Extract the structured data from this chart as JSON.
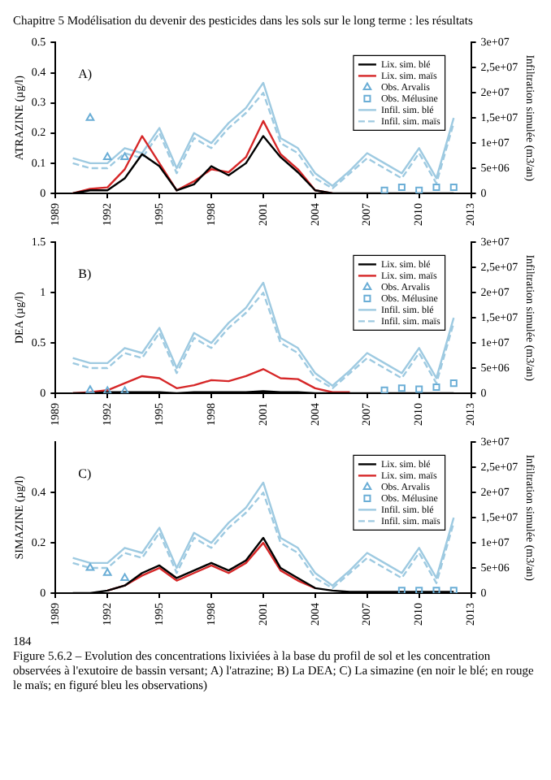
{
  "chart_data": [
    {
      "type": "other",
      "annotations": [
        "Chapitre 5 Modélisation du devenir des pesticides dans les sols sur le long terme : les résultats"
      ]
    },
    {
      "type": "line",
      "ylabel": "ATRAZINE (µg/l)",
      "y2label": "Infiltration simulée (m3/an)",
      "annotations": [
        "A)"
      ],
      "xlim": [
        1989,
        2013
      ],
      "xticks": [
        1989,
        1992,
        1995,
        1998,
        2001,
        2004,
        2007,
        2010,
        2013
      ],
      "ylim": [
        0,
        0.5
      ],
      "yticks": [
        0,
        0.1,
        0.2,
        0.3,
        0.4,
        0.5
      ],
      "y2lim": [
        0,
        30000000
      ],
      "y2ticks": [
        {
          "value": 0,
          "label": "0"
        },
        {
          "value": 5000000,
          "label": "5e+06"
        },
        {
          "value": 10000000,
          "label": "1e+07"
        },
        {
          "value": 15000000,
          "label": "1,5e+07"
        },
        {
          "value": 20000000,
          "label": "2e+07"
        },
        {
          "value": 25000000,
          "label": "2,5e+07"
        },
        {
          "value": 30000000,
          "label": "3e+07"
        }
      ],
      "legend": "top right",
      "grid": false,
      "series": [
        {
          "name": "Lix. sim. blé",
          "type": "line",
          "color": "#000000",
          "x": [
            1990,
            1991,
            1992,
            1993,
            1994,
            1995,
            1996,
            1997,
            1998,
            1999,
            2000,
            2001,
            2002,
            2003,
            2004,
            2005,
            2006,
            2007,
            2008,
            2009,
            2010,
            2011,
            2012
          ],
          "values": [
            0,
            0.01,
            0.01,
            0.05,
            0.13,
            0.09,
            0.01,
            0.03,
            0.09,
            0.06,
            0.1,
            0.19,
            0.12,
            0.07,
            0.01,
            0,
            0,
            0,
            0,
            0,
            0,
            0,
            0
          ]
        },
        {
          "name": "Lix. sim. maïs",
          "type": "line",
          "color": "#d62728",
          "x": [
            1990,
            1991,
            1992,
            1993,
            1994,
            1995,
            1996,
            1997,
            1998,
            1999,
            2000,
            2001,
            2002,
            2003,
            2004,
            2005
          ],
          "values": [
            0,
            0.015,
            0.02,
            0.08,
            0.19,
            0.1,
            0.01,
            0.04,
            0.08,
            0.07,
            0.12,
            0.24,
            0.13,
            0.08,
            0.01,
            0
          ]
        },
        {
          "name": "Obs. Arvalis",
          "type": "scatter",
          "marker": "triangle",
          "color": "#6baed6",
          "x": [
            1991,
            1992,
            1993
          ],
          "values": [
            0.25,
            0.12,
            0.12
          ]
        },
        {
          "name": "Obs. Mélusine",
          "type": "scatter",
          "marker": "square",
          "color": "#6baed6",
          "x": [
            2008,
            2009,
            2010,
            2011,
            2012
          ],
          "values": [
            0.01,
            0.02,
            0.01,
            0.02,
            0.02
          ]
        },
        {
          "name": "Infil. sim. blé",
          "type": "line",
          "axis": "y2",
          "color": "#9ecae1",
          "x": [
            1990,
            1991,
            1992,
            1993,
            1994,
            1995,
            1996,
            1997,
            1998,
            1999,
            2000,
            2001,
            2002,
            2003,
            2004,
            2005,
            2006,
            2007,
            2008,
            2009,
            2010,
            2011,
            2012
          ],
          "values": [
            7000000,
            6000000,
            6000000,
            9000000,
            8000000,
            13000000,
            5000000,
            12000000,
            10000000,
            14000000,
            17000000,
            22000000,
            11000000,
            9000000,
            4000000,
            1500000,
            4500000,
            8000000,
            6000000,
            4000000,
            9000000,
            3000000,
            15000000
          ]
        },
        {
          "name": "Infil. sim. maïs",
          "type": "line",
          "axis": "y2",
          "line_style": "dashed",
          "color": "#9ecae1",
          "x": [
            1990,
            1991,
            1992,
            1993,
            1994,
            1995,
            1996,
            1997,
            1998,
            1999,
            2000,
            2001,
            2002,
            2003,
            2004,
            2005,
            2006,
            2007,
            2008,
            2009,
            2010,
            2011,
            2012
          ],
          "values": [
            6000000,
            5000000,
            5000000,
            8000000,
            7000000,
            12000000,
            4000000,
            11000000,
            9000000,
            13000000,
            16000000,
            20000000,
            10000000,
            8000000,
            3000000,
            1000000,
            4000000,
            7000000,
            5000000,
            3000000,
            8000000,
            2000000,
            14000000
          ]
        }
      ]
    },
    {
      "type": "line",
      "ylabel": "DEA (µg/l)",
      "y2label": "Infiltration simulée (m3/an)",
      "annotations": [
        "B)"
      ],
      "xlim": [
        1989,
        2013
      ],
      "xticks": [
        1989,
        1992,
        1995,
        1998,
        2001,
        2004,
        2007,
        2010,
        2013
      ],
      "ylim": [
        0,
        1.5
      ],
      "yticks": [
        0,
        0.5,
        1,
        1.5
      ],
      "y2lim": [
        0,
        30000000
      ],
      "y2ticks": [
        {
          "value": 0,
          "label": "0"
        },
        {
          "value": 5000000,
          "label": "5e+06"
        },
        {
          "value": 10000000,
          "label": "1e+07"
        },
        {
          "value": 15000000,
          "label": "1,5e+07"
        },
        {
          "value": 20000000,
          "label": "2e+07"
        },
        {
          "value": 25000000,
          "label": "2,5e+07"
        },
        {
          "value": 30000000,
          "label": "3e+07"
        }
      ],
      "legend": "top right",
      "grid": false,
      "series": [
        {
          "name": "Lix. sim. blé",
          "type": "line",
          "color": "#000000",
          "x": [
            1990,
            1991,
            1992,
            1993,
            1994,
            1995,
            1996,
            1997,
            1998,
            1999,
            2000,
            2001,
            2002,
            2003,
            2004,
            2005,
            2006,
            2007,
            2008,
            2009,
            2010,
            2011,
            2012
          ],
          "values": [
            0,
            0,
            0.01,
            0.01,
            0.01,
            0.01,
            0,
            0.01,
            0.01,
            0.01,
            0.01,
            0.02,
            0.01,
            0.01,
            0,
            0,
            0,
            0,
            0,
            0,
            0,
            0,
            0
          ]
        },
        {
          "name": "Lix. sim. maïs",
          "type": "line",
          "color": "#d62728",
          "x": [
            1990,
            1991,
            1992,
            1993,
            1994,
            1995,
            1996,
            1997,
            1998,
            1999,
            2000,
            2001,
            2002,
            2003,
            2004,
            2005,
            2006
          ],
          "values": [
            0,
            0.01,
            0.03,
            0.1,
            0.17,
            0.15,
            0.05,
            0.08,
            0.13,
            0.12,
            0.17,
            0.24,
            0.15,
            0.14,
            0.05,
            0.01,
            0.01
          ]
        },
        {
          "name": "Obs. Arvalis",
          "type": "scatter",
          "marker": "triangle",
          "color": "#6baed6",
          "x": [
            1991,
            1992,
            1993
          ],
          "values": [
            0.03,
            0.02,
            0.02
          ]
        },
        {
          "name": "Obs. Mélusine",
          "type": "scatter",
          "marker": "square",
          "color": "#6baed6",
          "x": [
            2008,
            2009,
            2010,
            2011,
            2012
          ],
          "values": [
            0.03,
            0.05,
            0.04,
            0.06,
            0.1
          ]
        },
        {
          "name": "Infil. sim. blé",
          "type": "line",
          "axis": "y2",
          "color": "#9ecae1",
          "x": [
            1990,
            1991,
            1992,
            1993,
            1994,
            1995,
            1996,
            1997,
            1998,
            1999,
            2000,
            2001,
            2002,
            2003,
            2004,
            2005,
            2006,
            2007,
            2008,
            2009,
            2010,
            2011,
            2012
          ],
          "values": [
            7000000,
            6000000,
            6000000,
            9000000,
            8000000,
            13000000,
            5000000,
            12000000,
            10000000,
            14000000,
            17000000,
            22000000,
            11000000,
            9000000,
            4000000,
            1500000,
            4500000,
            8000000,
            6000000,
            4000000,
            9000000,
            3000000,
            15000000
          ]
        },
        {
          "name": "Infil. sim. maïs",
          "type": "line",
          "axis": "y2",
          "line_style": "dashed",
          "color": "#9ecae1",
          "x": [
            1990,
            1991,
            1992,
            1993,
            1994,
            1995,
            1996,
            1997,
            1998,
            1999,
            2000,
            2001,
            2002,
            2003,
            2004,
            2005,
            2006,
            2007,
            2008,
            2009,
            2010,
            2011,
            2012
          ],
          "values": [
            6000000,
            5000000,
            5000000,
            8000000,
            7000000,
            12000000,
            4000000,
            11000000,
            9000000,
            13000000,
            16000000,
            20000000,
            10000000,
            8000000,
            3000000,
            1000000,
            4000000,
            7000000,
            5000000,
            3000000,
            8000000,
            2000000,
            14000000
          ]
        }
      ]
    },
    {
      "type": "line",
      "ylabel": "SIMAZINE (µg/l)",
      "y2label": "Infiltration simulée (m3/an)",
      "annotations": [
        "C)"
      ],
      "xlim": [
        1989,
        2013
      ],
      "xticks": [
        1989,
        1992,
        1995,
        1998,
        2001,
        2004,
        2007,
        2010,
        2013
      ],
      "ylim": [
        0,
        0.6
      ],
      "yticks": [
        0,
        0.2,
        0.4
      ],
      "y2lim": [
        0,
        30000000
      ],
      "y2ticks": [
        {
          "value": 0,
          "label": "0"
        },
        {
          "value": 5000000,
          "label": "5e+06"
        },
        {
          "value": 10000000,
          "label": "1e+07"
        },
        {
          "value": 15000000,
          "label": "1,5e+07"
        },
        {
          "value": 20000000,
          "label": "2e+07"
        },
        {
          "value": 25000000,
          "label": "2,5e+07"
        },
        {
          "value": 30000000,
          "label": "3e+07"
        }
      ],
      "legend": "top right",
      "grid": false,
      "series": [
        {
          "name": "Lix. sim. blé",
          "type": "line",
          "color": "#000000",
          "x": [
            1990,
            1991,
            1992,
            1993,
            1994,
            1995,
            1996,
            1997,
            1998,
            1999,
            2000,
            2001,
            2002,
            2003,
            2004,
            2005,
            2006,
            2007,
            2008,
            2009,
            2010,
            2011,
            2012
          ],
          "values": [
            0,
            0,
            0.01,
            0.03,
            0.08,
            0.11,
            0.06,
            0.09,
            0.12,
            0.09,
            0.13,
            0.22,
            0.1,
            0.06,
            0.02,
            0.01,
            0.005,
            0.005,
            0.005,
            0.005,
            0.005,
            0.005,
            0.005
          ]
        },
        {
          "name": "Lix. sim. maïs",
          "type": "line",
          "color": "#d62728",
          "x": [
            1992,
            1993,
            1994,
            1995,
            1996,
            1997,
            1998,
            1999,
            2000,
            2001,
            2002,
            2003,
            2004
          ],
          "values": [
            0.01,
            0.03,
            0.07,
            0.1,
            0.05,
            0.08,
            0.11,
            0.08,
            0.12,
            0.2,
            0.09,
            0.05,
            0.02
          ]
        },
        {
          "name": "Obs. Arvalis",
          "type": "scatter",
          "marker": "triangle",
          "color": "#6baed6",
          "x": [
            1991,
            1992,
            1993
          ],
          "values": [
            0.1,
            0.08,
            0.06
          ]
        },
        {
          "name": "Obs. Mélusine",
          "type": "scatter",
          "marker": "square",
          "color": "#6baed6",
          "x": [
            2009,
            2010,
            2011,
            2012
          ],
          "values": [
            0.01,
            0.01,
            0.01,
            0.01
          ]
        },
        {
          "name": "Infil. sim. blé",
          "type": "line",
          "axis": "y2",
          "color": "#9ecae1",
          "x": [
            1990,
            1991,
            1992,
            1993,
            1994,
            1995,
            1996,
            1997,
            1998,
            1999,
            2000,
            2001,
            2002,
            2003,
            2004,
            2005,
            2006,
            2007,
            2008,
            2009,
            2010,
            2011,
            2012
          ],
          "values": [
            7000000,
            6000000,
            6000000,
            9000000,
            8000000,
            13000000,
            5000000,
            12000000,
            10000000,
            14000000,
            17000000,
            22000000,
            11000000,
            9000000,
            4000000,
            1500000,
            4500000,
            8000000,
            6000000,
            4000000,
            9000000,
            3000000,
            15000000
          ]
        },
        {
          "name": "Infil. sim. maïs",
          "type": "line",
          "axis": "y2",
          "line_style": "dashed",
          "color": "#9ecae1",
          "x": [
            1990,
            1991,
            1992,
            1993,
            1994,
            1995,
            1996,
            1997,
            1998,
            1999,
            2000,
            2001,
            2002,
            2003,
            2004,
            2005,
            2006,
            2007,
            2008,
            2009,
            2010,
            2011,
            2012
          ],
          "values": [
            6000000,
            5000000,
            5000000,
            8000000,
            7000000,
            12000000,
            4000000,
            11000000,
            9000000,
            13000000,
            16000000,
            20000000,
            10000000,
            8000000,
            3000000,
            1000000,
            4000000,
            7000000,
            5000000,
            3000000,
            8000000,
            2000000,
            14000000
          ]
        }
      ]
    },
    {
      "type": "other",
      "annotations": [
        "184",
        "Figure 5.6.2 – Evolution des concentrations lixiviées à la base du profil de sol et les concentration observées à l'exutoire de bassin versant; A) l'atrazine; B) La DEA; C) La simazine (en noir le blé; en rouge le maïs; en figuré bleu les observations)"
      ]
    }
  ]
}
